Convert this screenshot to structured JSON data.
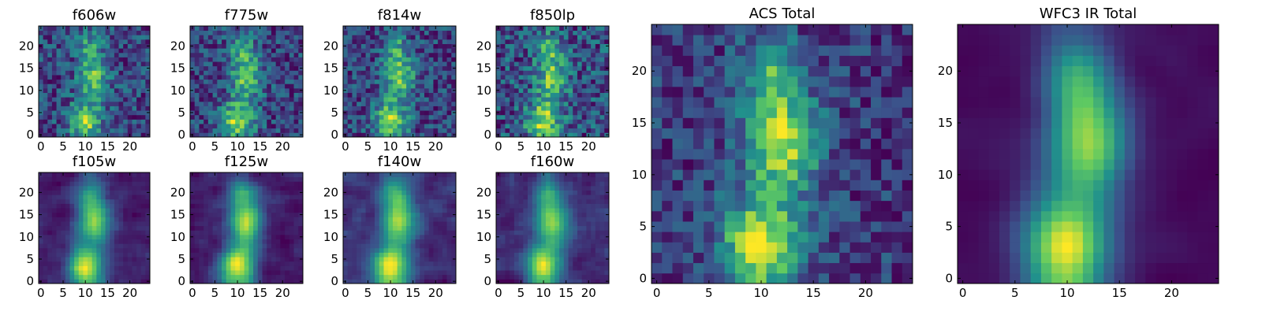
{
  "chart_data": {
    "type": "heatmap",
    "colormap": "viridis",
    "colorscale": [
      "#440154",
      "#3b528b",
      "#21918c",
      "#5ec962",
      "#fde725"
    ],
    "background": "#ffffff",
    "panels": [
      {
        "title": "f606w",
        "xlim": [
          0,
          24
        ],
        "ylim": [
          0,
          24
        ],
        "xticks": [
          0,
          5,
          10,
          15,
          20
        ],
        "yticks": [
          0,
          5,
          10,
          15,
          20
        ],
        "xtick_labels": [
          "0",
          "5",
          "10",
          "15",
          "20"
        ],
        "ytick_labels": [
          "0",
          "5",
          "10",
          "15",
          "20"
        ],
        "grid_size": 25,
        "noise": 0.22,
        "blur": 0,
        "base": 0.45,
        "seed": 11
      },
      {
        "title": "f775w",
        "xlim": [
          0,
          24
        ],
        "ylim": [
          0,
          24
        ],
        "xticks": [
          0,
          5,
          10,
          15,
          20
        ],
        "yticks": [
          0,
          5,
          10,
          15,
          20
        ],
        "xtick_labels": [
          "0",
          "5",
          "10",
          "15",
          "20"
        ],
        "ytick_labels": [
          "0",
          "5",
          "10",
          "15",
          "20"
        ],
        "grid_size": 25,
        "noise": 0.2,
        "blur": 0,
        "base": 0.42,
        "seed": 23
      },
      {
        "title": "f814w",
        "xlim": [
          0,
          24
        ],
        "ylim": [
          0,
          24
        ],
        "xticks": [
          0,
          5,
          10,
          15,
          20
        ],
        "yticks": [
          0,
          5,
          10,
          15,
          20
        ],
        "xtick_labels": [
          "0",
          "5",
          "10",
          "15",
          "20"
        ],
        "ytick_labels": [
          "0",
          "5",
          "10",
          "15",
          "20"
        ],
        "grid_size": 25,
        "noise": 0.2,
        "blur": 0,
        "base": 0.4,
        "seed": 37
      },
      {
        "title": "f850lp",
        "xlim": [
          0,
          24
        ],
        "ylim": [
          0,
          24
        ],
        "xticks": [
          0,
          5,
          10,
          15,
          20
        ],
        "yticks": [
          0,
          5,
          10,
          15,
          20
        ],
        "xtick_labels": [
          "0",
          "5",
          "10",
          "15",
          "20"
        ],
        "ytick_labels": [
          "0",
          "5",
          "10",
          "15",
          "20"
        ],
        "grid_size": 25,
        "noise": 0.24,
        "blur": 0,
        "base": 0.44,
        "seed": 41
      },
      {
        "title": "ACS Total",
        "xlim": [
          0,
          24
        ],
        "ylim": [
          0,
          24
        ],
        "xticks": [
          0,
          5,
          10,
          15,
          20
        ],
        "yticks": [
          0,
          5,
          10,
          15,
          20
        ],
        "xtick_labels": [
          "0",
          "5",
          "10",
          "15",
          "20"
        ],
        "ytick_labels": [
          "0",
          "5",
          "10",
          "15",
          "20"
        ],
        "grid_size": 25,
        "noise": 0.13,
        "blur": 0,
        "base": 0.4,
        "seed": 53
      },
      {
        "title": "f105w",
        "xlim": [
          0,
          24
        ],
        "ylim": [
          0,
          24
        ],
        "xticks": [
          0,
          5,
          10,
          15,
          20
        ],
        "yticks": [
          0,
          5,
          10,
          15,
          20
        ],
        "xtick_labels": [
          "0",
          "5",
          "10",
          "15",
          "20"
        ],
        "ytick_labels": [
          "0",
          "5",
          "10",
          "15",
          "20"
        ],
        "grid_size": 25,
        "noise": 0.12,
        "blur": 1,
        "base": 0.34,
        "seed": 61
      },
      {
        "title": "f125w",
        "xlim": [
          0,
          24
        ],
        "ylim": [
          0,
          24
        ],
        "xticks": [
          0,
          5,
          10,
          15,
          20
        ],
        "yticks": [
          0,
          5,
          10,
          15,
          20
        ],
        "xtick_labels": [
          "0",
          "5",
          "10",
          "15",
          "20"
        ],
        "ytick_labels": [
          "0",
          "5",
          "10",
          "15",
          "20"
        ],
        "grid_size": 25,
        "noise": 0.12,
        "blur": 1,
        "base": 0.36,
        "seed": 71
      },
      {
        "title": "f140w",
        "xlim": [
          0,
          24
        ],
        "ylim": [
          0,
          24
        ],
        "xticks": [
          0,
          5,
          10,
          15,
          20
        ],
        "yticks": [
          0,
          5,
          10,
          15,
          20
        ],
        "xtick_labels": [
          "0",
          "5",
          "10",
          "15",
          "20"
        ],
        "ytick_labels": [
          "0",
          "5",
          "10",
          "15",
          "20"
        ],
        "grid_size": 25,
        "noise": 0.12,
        "blur": 1,
        "base": 0.3,
        "seed": 83
      },
      {
        "title": "f160w",
        "xlim": [
          0,
          24
        ],
        "ylim": [
          0,
          24
        ],
        "xticks": [
          0,
          5,
          10,
          15,
          20
        ],
        "yticks": [
          0,
          5,
          10,
          15,
          20
        ],
        "xtick_labels": [
          "0",
          "5",
          "10",
          "15",
          "20"
        ],
        "ytick_labels": [
          "0",
          "5",
          "10",
          "15",
          "20"
        ],
        "grid_size": 25,
        "noise": 0.13,
        "blur": 1,
        "base": 0.28,
        "seed": 97
      },
      {
        "title": "WFC3 IR Total",
        "xlim": [
          0,
          24
        ],
        "ylim": [
          0,
          24
        ],
        "xticks": [
          0,
          5,
          10,
          15,
          20
        ],
        "yticks": [
          0,
          5,
          10,
          15,
          20
        ],
        "xtick_labels": [
          "0",
          "5",
          "10",
          "15",
          "20"
        ],
        "ytick_labels": [
          "0",
          "5",
          "10",
          "15",
          "20"
        ],
        "grid_size": 25,
        "noise": 0.06,
        "blur": 2,
        "base": 0.3,
        "seed": 101
      }
    ],
    "source_model": {
      "description_free": true,
      "peaks": [
        {
          "x": 10,
          "y": 3,
          "amp": 1.0,
          "sx": 2.6,
          "sy": 3.2
        },
        {
          "x": 12,
          "y": 13,
          "amp": 0.85,
          "sx": 2.4,
          "sy": 3.5
        },
        {
          "x": 11,
          "y": 20,
          "amp": 0.55,
          "sx": 2.0,
          "sy": 2.6
        }
      ]
    }
  }
}
